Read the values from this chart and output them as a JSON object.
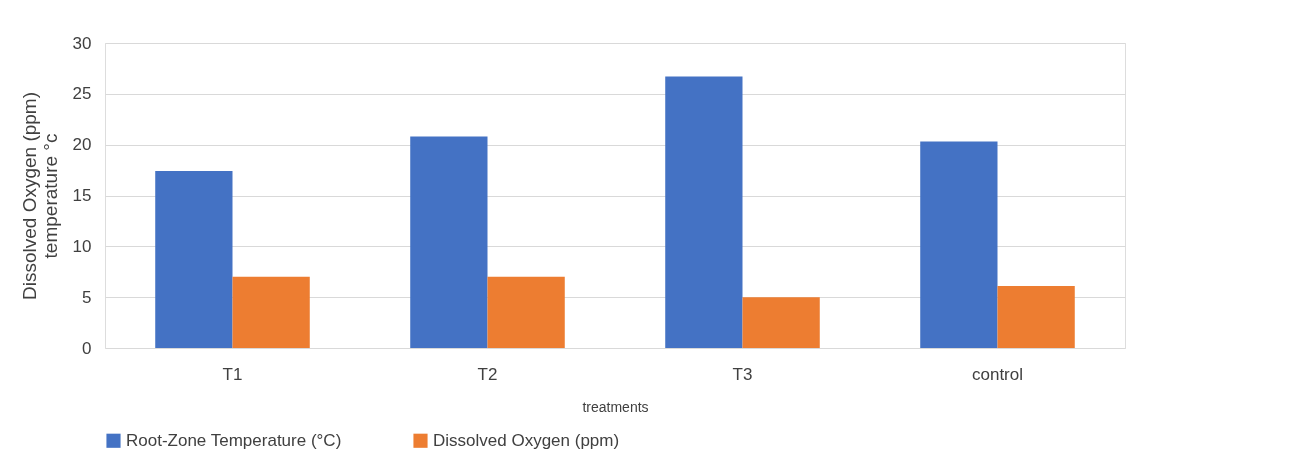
{
  "chart_data": {
    "type": "bar",
    "xlabel": "treatments",
    "ylabel": "Dissolved Oxygen (ppm)\ntemperature °c",
    "categories": [
      "T1",
      "T2",
      "T3",
      "control"
    ],
    "series": [
      {
        "name": "Root-Zone Temperature (°C)",
        "color": "#4472c4",
        "values": [
          17.4,
          20.8,
          26.7,
          20.3
        ]
      },
      {
        "name": "Dissolved Oxygen (ppm)",
        "color": "#ed7d31",
        "values": [
          7.0,
          7.0,
          5.0,
          6.1
        ]
      }
    ],
    "ylim": [
      0,
      30
    ],
    "yticks": [
      0,
      5,
      10,
      15,
      20,
      25,
      30
    ],
    "grid": "y",
    "legend": "bottom"
  }
}
